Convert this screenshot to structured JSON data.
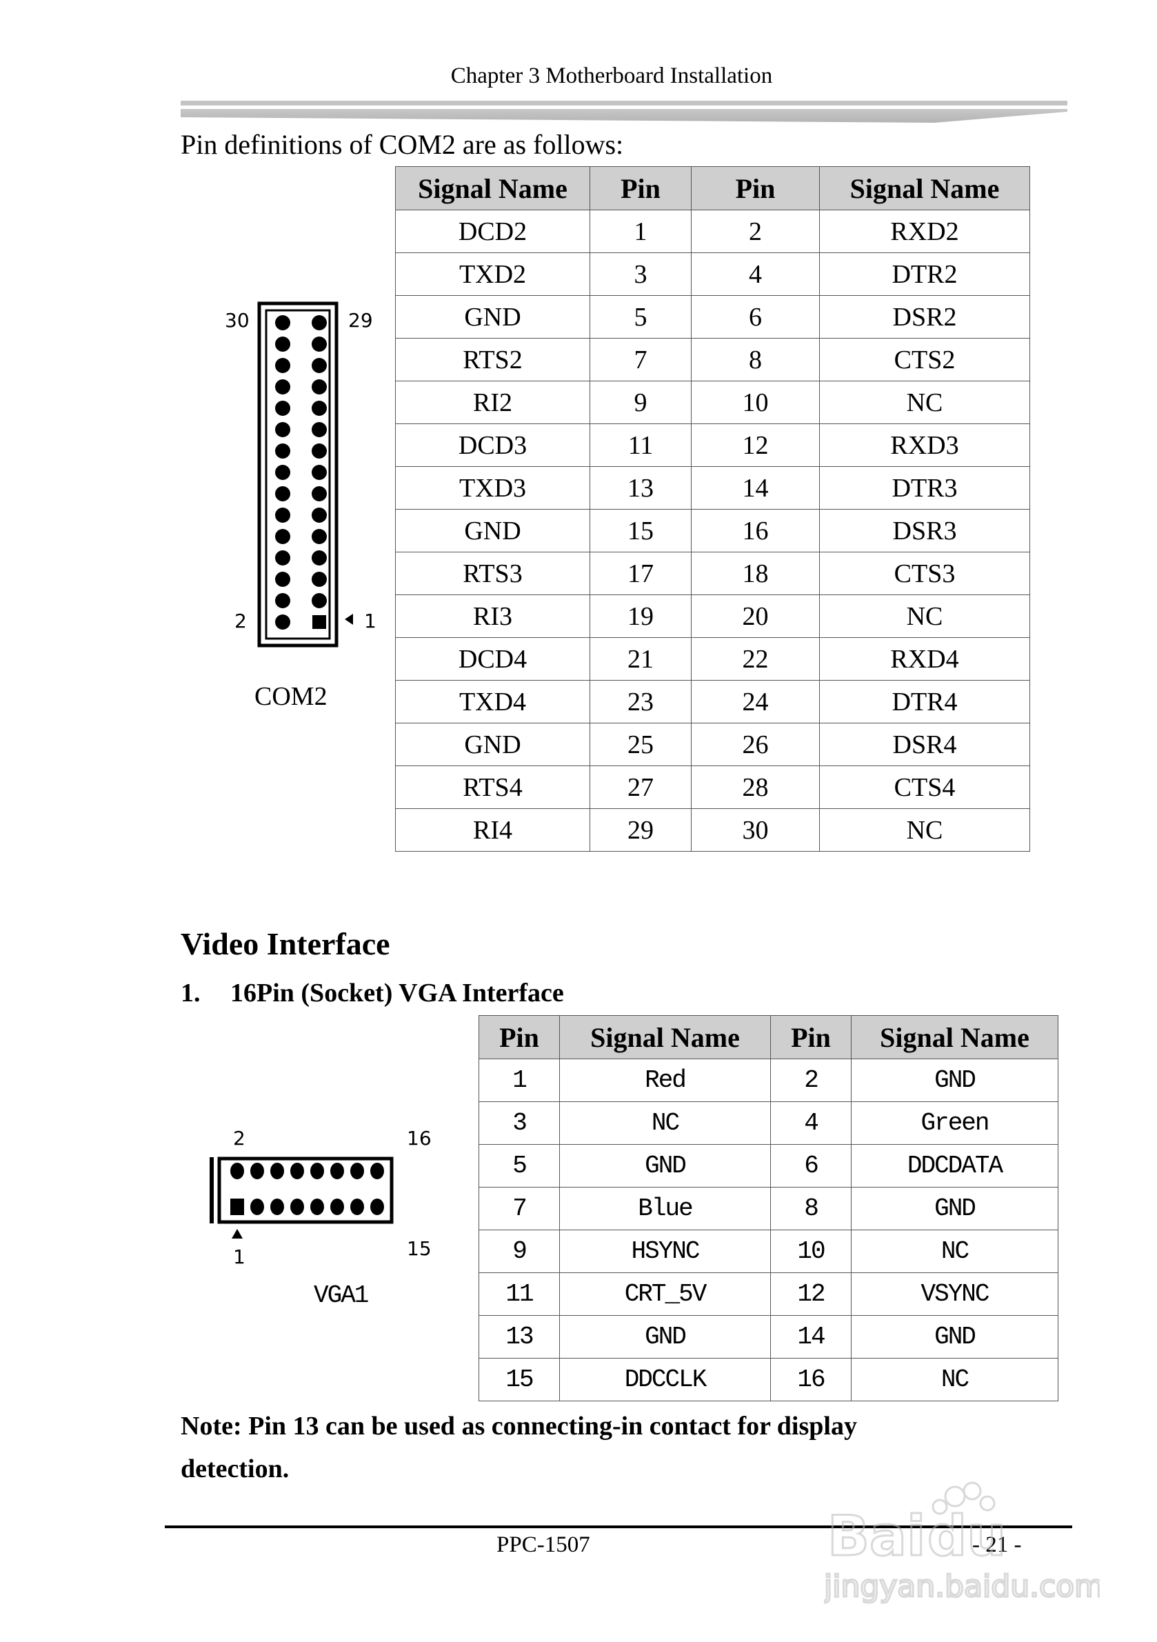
{
  "header": {
    "title": "Chapter 3 Motherboard Installation"
  },
  "intro": "Pin definitions of COM2 are as follows:",
  "com2": {
    "label": "COM2",
    "pin_labels": {
      "top_left": "30",
      "top_right": "29",
      "bottom_left": "2",
      "bottom_right": "1"
    },
    "headers": [
      "Signal Name",
      "Pin",
      "Pin",
      "Signal Name"
    ],
    "rows": [
      [
        "DCD2",
        "1",
        "2",
        "RXD2"
      ],
      [
        "TXD2",
        "3",
        "4",
        "DTR2"
      ],
      [
        "GND",
        "5",
        "6",
        "DSR2"
      ],
      [
        "RTS2",
        "7",
        "8",
        "CTS2"
      ],
      [
        "RI2",
        "9",
        "10",
        "NC"
      ],
      [
        "DCD3",
        "11",
        "12",
        "RXD3"
      ],
      [
        "TXD3",
        "13",
        "14",
        "DTR3"
      ],
      [
        "GND",
        "15",
        "16",
        "DSR3"
      ],
      [
        "RTS3",
        "17",
        "18",
        "CTS3"
      ],
      [
        "RI3",
        "19",
        "20",
        "NC"
      ],
      [
        "DCD4",
        "21",
        "22",
        "RXD4"
      ],
      [
        "TXD4",
        "23",
        "24",
        "DTR4"
      ],
      [
        "GND",
        "25",
        "26",
        "DSR4"
      ],
      [
        "RTS4",
        "27",
        "28",
        "CTS4"
      ],
      [
        "RI4",
        "29",
        "30",
        "NC"
      ]
    ]
  },
  "video": {
    "heading": "Video Interface",
    "sub_number": "1.",
    "sub_title": "16Pin (Socket) VGA Interface",
    "label": "VGA1",
    "pin_labels": {
      "top_left": "2",
      "top_right": "16",
      "bottom_left": "1",
      "bottom_right": "15"
    },
    "headers": [
      "Pin",
      "Signal Name",
      "Pin",
      "Signal Name"
    ],
    "rows": [
      [
        "1",
        "Red",
        "2",
        "GND"
      ],
      [
        "3",
        "NC",
        "4",
        "Green"
      ],
      [
        "5",
        "GND",
        "6",
        "DDCDATA"
      ],
      [
        "7",
        "Blue",
        "8",
        "GND"
      ],
      [
        "9",
        "HSYNC",
        "10",
        "NC"
      ],
      [
        "11",
        "CRT_5V",
        "12",
        "VSYNC"
      ],
      [
        "13",
        "GND",
        "14",
        "GND"
      ],
      [
        "15",
        "DDCCLK",
        "16",
        "NC"
      ]
    ],
    "note_line1": "Note: Pin 13 can be used as connecting-in contact for display",
    "note_line2": "detection."
  },
  "footer": {
    "model": "PPC-1507",
    "page": "- 21 -"
  },
  "watermark": {
    "brand": "Bai du 经验",
    "url": "jingyan.baidu.com"
  }
}
